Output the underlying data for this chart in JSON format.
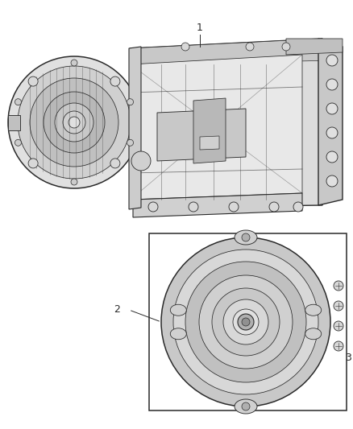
{
  "bg_color": "#ffffff",
  "line_color": "#2a2a2a",
  "label_1": "1",
  "label_2": "2",
  "label_3": "3",
  "figsize": [
    4.38,
    5.33
  ],
  "dpi": 100,
  "trans_img_url": "",
  "gray_light": "#d8d8d8",
  "gray_mid": "#b0b0b0",
  "gray_dark": "#888888"
}
